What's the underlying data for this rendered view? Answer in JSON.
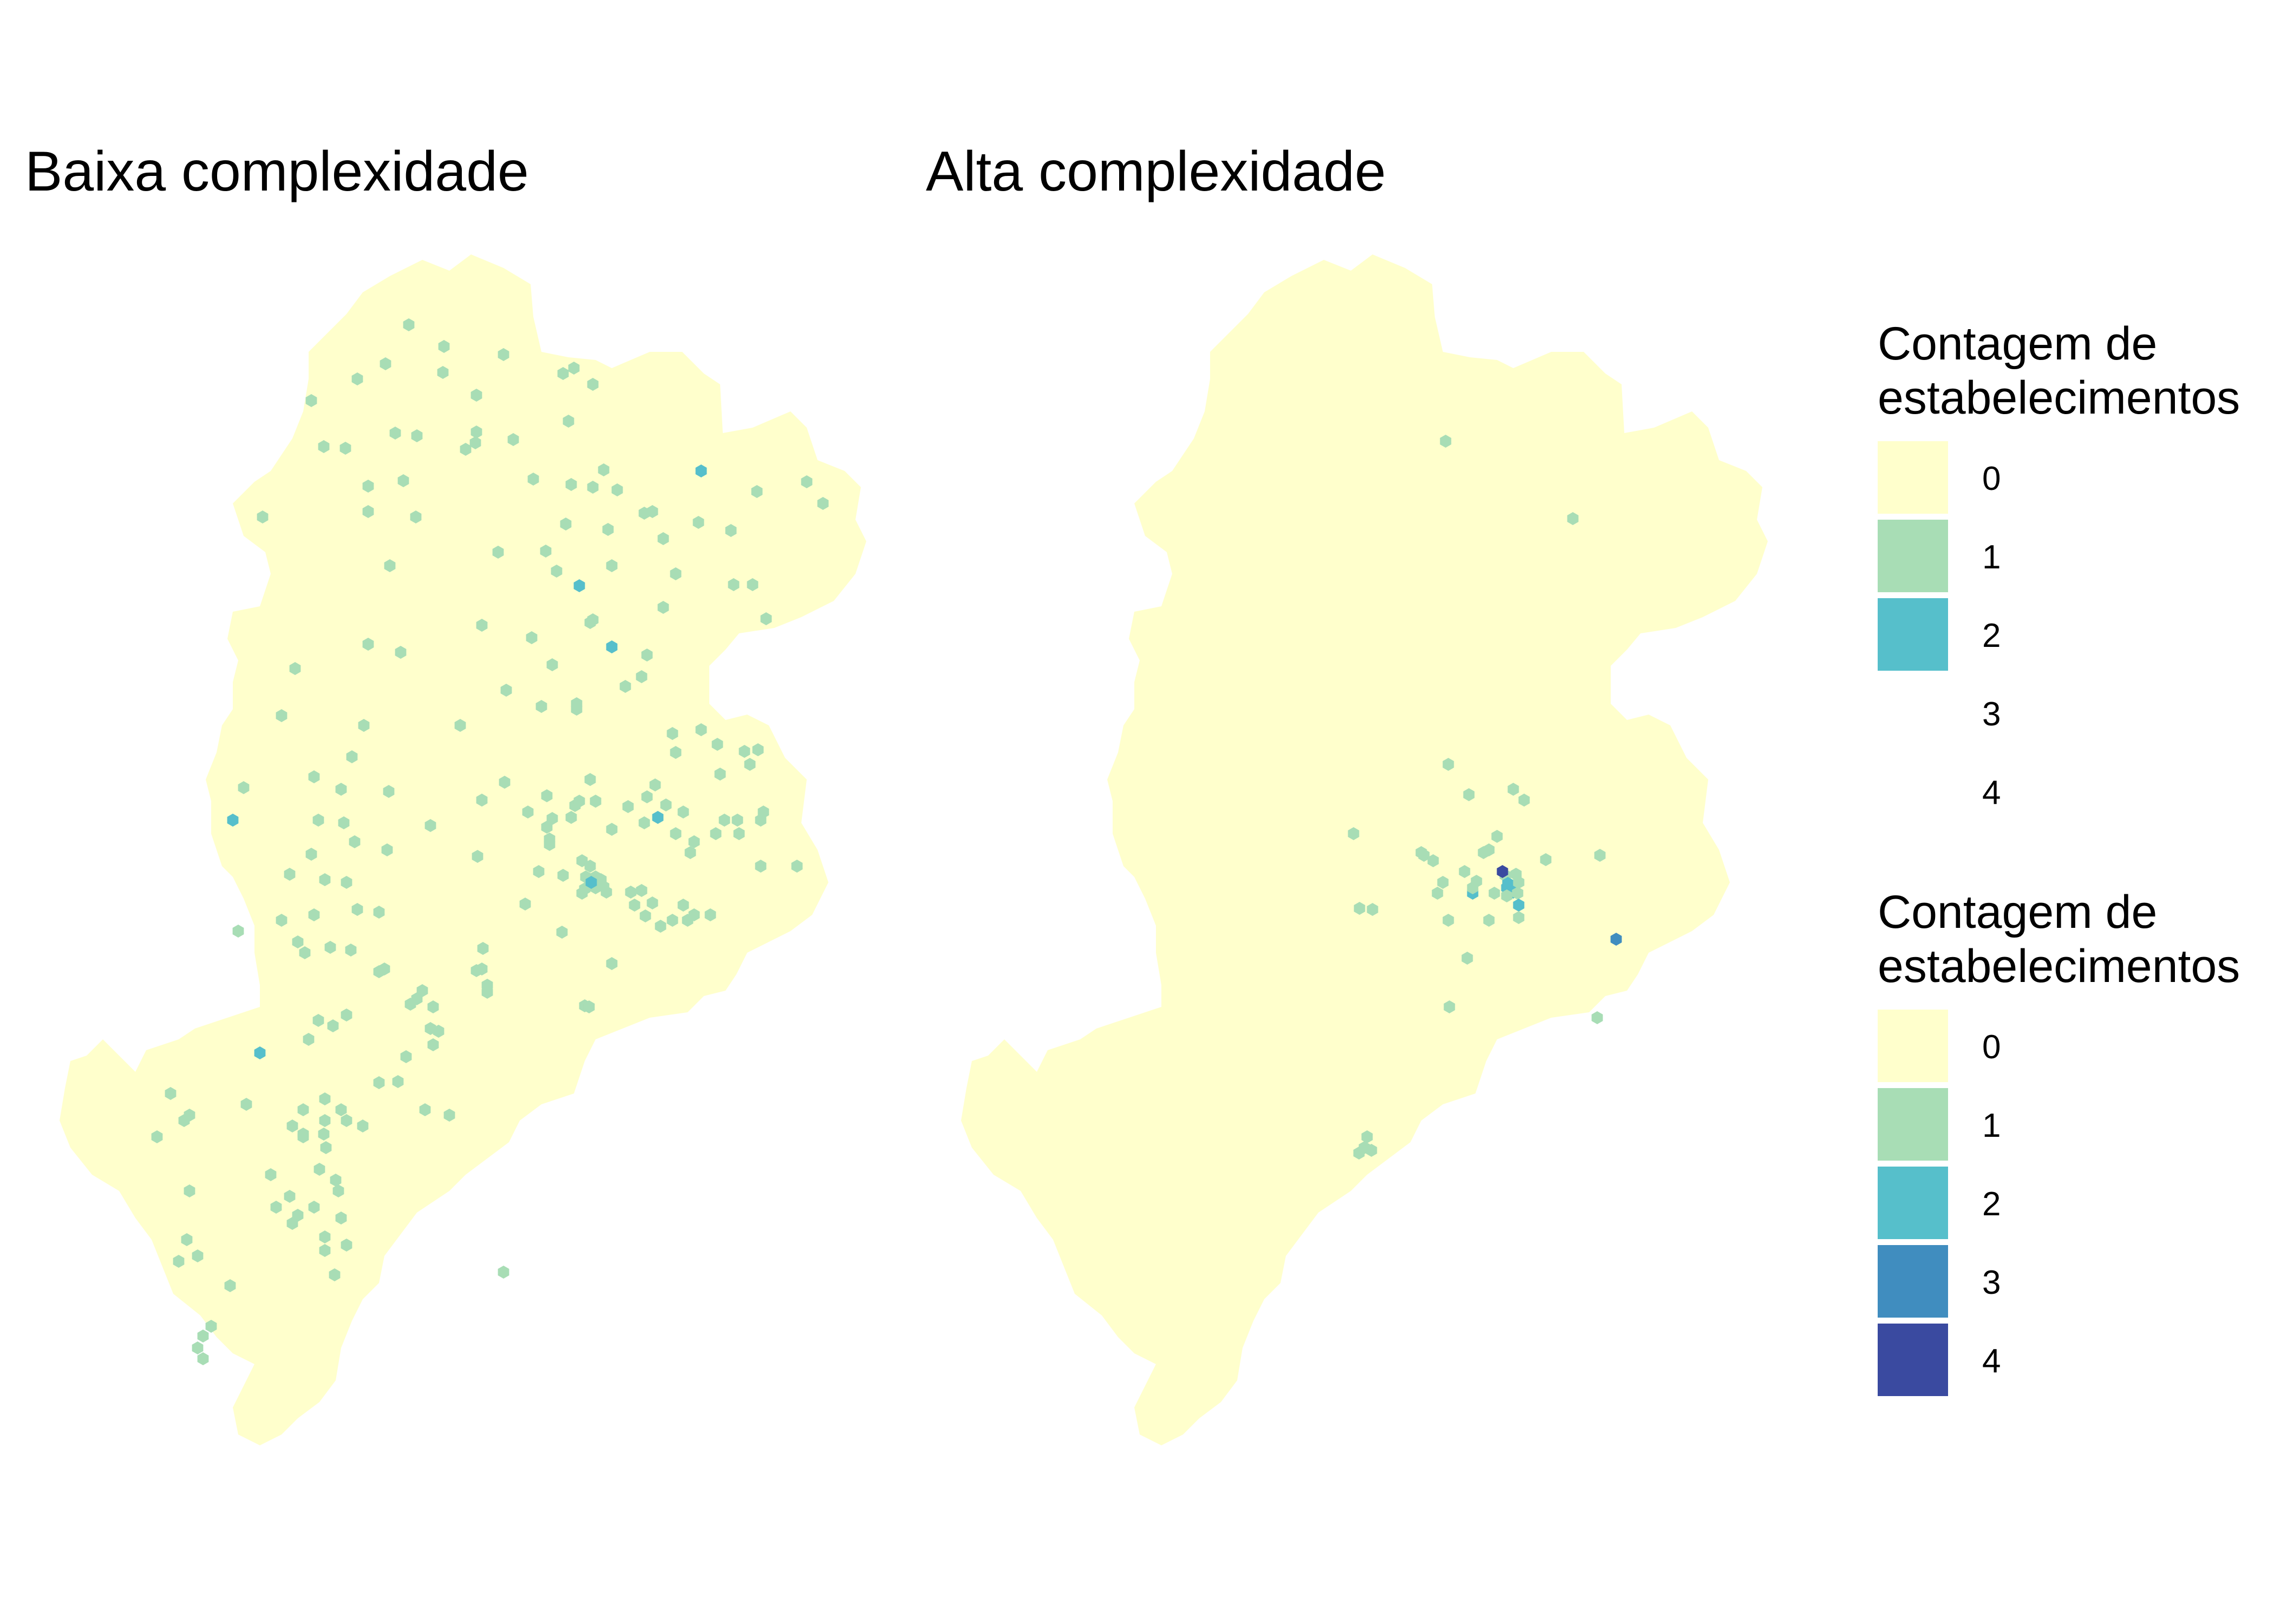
{
  "panels": [
    {
      "title": "Baixa complexidade"
    },
    {
      "title": "Alta complexidade"
    }
  ],
  "legends": [
    {
      "title_line1": "Contagem de",
      "title_line2": "estabelecimentos",
      "items": [
        {
          "label": "0",
          "color": "#ffffcc",
          "shown": true
        },
        {
          "label": "1",
          "color": "#a8ddb5",
          "shown": true
        },
        {
          "label": "2",
          "color": "#56bfcb",
          "shown": true
        },
        {
          "label": "3",
          "color": "#ffffff",
          "shown": false
        },
        {
          "label": "4",
          "color": "#ffffff",
          "shown": false
        }
      ]
    },
    {
      "title_line1": "Contagem de",
      "title_line2": "estabelecimentos",
      "items": [
        {
          "label": "0",
          "color": "#ffffcc",
          "shown": true
        },
        {
          "label": "1",
          "color": "#a8ddb5",
          "shown": true
        },
        {
          "label": "2",
          "color": "#56bfcb",
          "shown": true
        },
        {
          "label": "3",
          "color": "#408dbf",
          "shown": true
        },
        {
          "label": "4",
          "color": "#3a4aa0",
          "shown": true
        }
      ]
    }
  ],
  "colors": {
    "count_0": "#ffffcc",
    "count_1": "#a8ddb5",
    "count_2": "#56bfcb",
    "count_3": "#408dbf",
    "count_4": "#3a4aa0"
  }
}
